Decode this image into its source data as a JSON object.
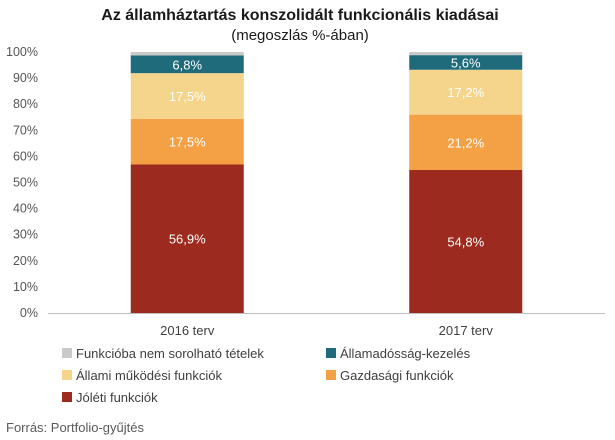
{
  "chart_data": {
    "type": "bar",
    "stacked": true,
    "title": "Az államháztartás konszolidált funkcionális kiadásai",
    "subtitle": "(megoszlás %-ában)",
    "categories": [
      "2016 terv",
      "2017 terv"
    ],
    "ylim": [
      0,
      100
    ],
    "y_ticks": [
      "0%",
      "10%",
      "20%",
      "30%",
      "40%",
      "50%",
      "60%",
      "70%",
      "80%",
      "90%",
      "100%"
    ],
    "series": [
      {
        "name": "Jóléti funkciók",
        "color": "#9c2a1e",
        "values": [
          56.9,
          54.8
        ],
        "labels": [
          "56,9%",
          "54,8%"
        ]
      },
      {
        "name": "Gazdasági funkciók",
        "color": "#f4a044",
        "values": [
          17.5,
          21.2
        ],
        "labels": [
          "17,5%",
          "21,2%"
        ]
      },
      {
        "name": "Állami működési funkciók",
        "color": "#f5d48c",
        "values": [
          17.5,
          17.2
        ],
        "labels": [
          "17,5%",
          "17,2%"
        ]
      },
      {
        "name": "Államadósság-kezelés",
        "color": "#1f6b7c",
        "values": [
          6.8,
          5.6
        ],
        "labels": [
          "6,8%",
          "5,6%"
        ]
      },
      {
        "name": "Funkcióba nem sorolható tételek",
        "color": "#c9c9c9",
        "values": [
          1.3,
          1.2
        ],
        "labels": [
          "",
          ""
        ]
      }
    ],
    "legend_order": [
      "Funkcióba nem sorolható tételek",
      "Államadósság-kezelés",
      "Állami működési funkciók",
      "Gazdasági funkciók",
      "Jóléti funkciók"
    ],
    "grid": false,
    "legend_position": "bottom"
  },
  "source": "Forrás: Portfolio-gyűjtés"
}
